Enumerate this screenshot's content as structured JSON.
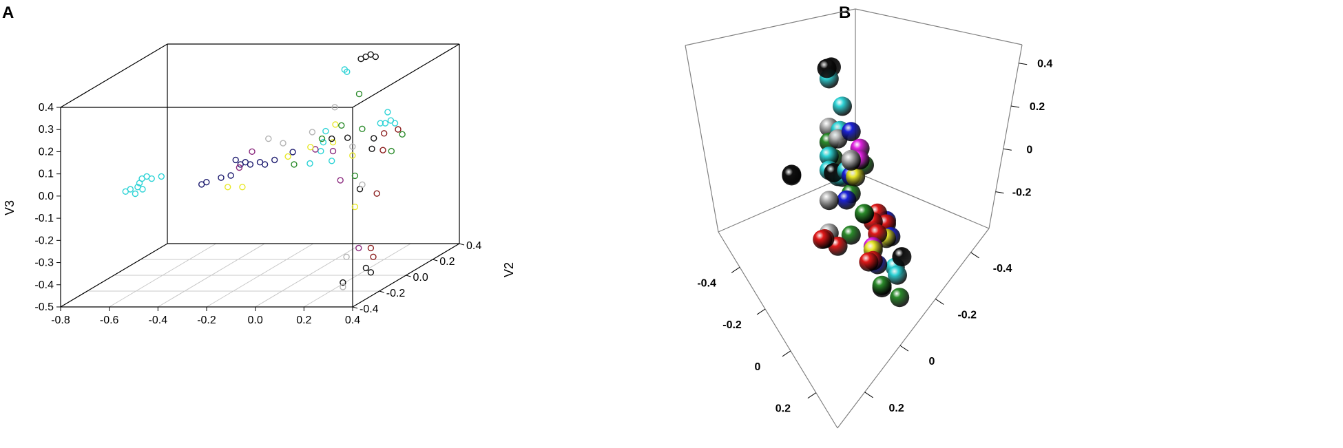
{
  "figure": {
    "panel_a_label": "A",
    "panel_b_label": "B"
  },
  "colors": {
    "cyan": "#2ed3d6",
    "navy": "#1c1a6e",
    "purple": "#8b2a7e",
    "yellow": "#e8e82a",
    "green": "#2a8a2a",
    "black": "#111111",
    "gray": "#b4b4b4",
    "darkred": "#8a1c1c",
    "red": "#e01818",
    "blue": "#1c22d8",
    "magenta": "#e020e0",
    "lime": "#20b820"
  },
  "chart_data": [
    {
      "type": "scatter",
      "subtype": "3d-scatter",
      "title": "",
      "xlabel": "",
      "ylabel": "V2",
      "zlabel": "V3",
      "x_ticks": [
        "-0.8",
        "-0.6",
        "-0.4",
        "-0.2",
        "0.0",
        "0.2",
        "0.4"
      ],
      "y_ticks": [
        "-0.4",
        "-0.2",
        "0.0",
        "0.2",
        "0.4"
      ],
      "z_ticks": [
        "-0.5",
        "-0.4",
        "-0.3",
        "-0.2",
        "-0.1",
        "0.0",
        "0.1",
        "0.2",
        "0.3",
        "0.4"
      ],
      "xlim": [
        -0.8,
        0.4
      ],
      "ylim": [
        -0.4,
        0.4
      ],
      "zlim": [
        -0.5,
        0.4
      ],
      "grid": "floor",
      "series": [
        {
          "color": "#2ed3d6",
          "points": [
            [
              -0.78,
              0.05,
              -0.14
            ],
            [
              -0.76,
              0.05,
              -0.13
            ],
            [
              -0.75,
              0.1,
              -0.12
            ],
            [
              -0.74,
              0.1,
              -0.1
            ],
            [
              -0.73,
              0.05,
              -0.12
            ],
            [
              -0.72,
              0.1,
              -0.09
            ],
            [
              -0.7,
              0.1,
              -0.1
            ],
            [
              -0.66,
              0.1,
              -0.09
            ],
            [
              -0.74,
              0.05,
              -0.15
            ],
            [
              -0.71,
              0.05,
              -0.13
            ],
            [
              0.12,
              0.05,
              0.41
            ],
            [
              0.13,
              0.05,
              0.4
            ],
            [
              0.07,
              0.0,
              0.15
            ],
            [
              0.06,
              0.0,
              0.1
            ],
            [
              0.06,
              -0.1,
              0.04
            ],
            [
              0.04,
              0.1,
              -0.02
            ],
            [
              0.05,
              0.0,
              0.06
            ],
            [
              0.24,
              0.1,
              0.15
            ],
            [
              0.26,
              0.1,
              0.15
            ],
            [
              0.3,
              0.1,
              0.15
            ],
            [
              0.31,
              0.05,
              0.18
            ],
            [
              0.27,
              0.1,
              0.2
            ]
          ]
        },
        {
          "color": "#1c1a6e",
          "points": [
            [
              -0.44,
              0.0,
              -0.09
            ],
            [
              -0.42,
              0.0,
              -0.08
            ],
            [
              -0.36,
              0.0,
              -0.06
            ],
            [
              -0.32,
              0.0,
              -0.05
            ],
            [
              -0.3,
              0.0,
              0.02
            ],
            [
              -0.28,
              0.0,
              0.0
            ],
            [
              -0.26,
              0.0,
              0.01
            ],
            [
              -0.24,
              0.0,
              0.0
            ],
            [
              -0.2,
              0.0,
              0.01
            ],
            [
              -0.18,
              0.0,
              0.0
            ],
            [
              -0.14,
              0.0,
              0.02
            ],
            [
              -0.12,
              0.1,
              0.02
            ]
          ]
        },
        {
          "color": "#8b2a7e",
          "points": [
            [
              -0.34,
              0.1,
              -0.05
            ],
            [
              -0.26,
              0.05,
              0.04
            ],
            [
              0.0,
              0.05,
              0.05
            ],
            [
              0.1,
              0.0,
              0.06
            ],
            [
              0.24,
              -0.2,
              0.0
            ],
            [
              0.37,
              -0.3,
              -0.27
            ]
          ]
        },
        {
          "color": "#e8e82a",
          "points": [
            [
              -0.36,
              0.05,
              -0.12
            ],
            [
              -0.3,
              0.05,
              -0.12
            ],
            [
              -0.14,
              0.1,
              0.0
            ],
            [
              -0.02,
              0.05,
              0.06
            ],
            [
              0.1,
              0.0,
              0.1
            ],
            [
              0.11,
              0.0,
              0.18
            ],
            [
              0.18,
              0.0,
              0.04
            ],
            [
              0.3,
              -0.2,
              -0.12
            ]
          ]
        },
        {
          "color": "#2a8a2a",
          "points": [
            [
              0.0,
              0.1,
              0.08
            ],
            [
              -0.06,
              0.0,
              0.0
            ],
            [
              0.08,
              0.1,
              0.14
            ],
            [
              0.18,
              0.05,
              0.3
            ],
            [
              0.22,
              0.0,
              0.16
            ],
            [
              0.3,
              -0.2,
              0.02
            ],
            [
              0.34,
              0.0,
              0.06
            ],
            [
              0.33,
              0.1,
              0.1
            ]
          ]
        },
        {
          "color": "#111111",
          "points": [
            [
              0.16,
              0.1,
              0.44
            ],
            [
              0.18,
              0.1,
              0.45
            ],
            [
              0.2,
              0.1,
              0.46
            ],
            [
              0.22,
              0.1,
              0.45
            ],
            [
              0.04,
              0.1,
              0.08
            ],
            [
              0.16,
              0.0,
              0.12
            ],
            [
              0.24,
              0.05,
              0.1
            ],
            [
              0.26,
              0.0,
              0.07
            ],
            [
              0.32,
              -0.2,
              -0.04
            ],
            [
              0.4,
              -0.3,
              -0.36
            ],
            [
              0.42,
              -0.3,
              -0.38
            ],
            [
              0.36,
              -0.4,
              -0.39
            ]
          ]
        },
        {
          "color": "#b4b4b4",
          "points": [
            [
              -0.22,
              0.1,
              0.08
            ],
            [
              -0.16,
              0.1,
              0.06
            ],
            [
              -0.04,
              0.1,
              0.11
            ],
            [
              0.08,
              0.05,
              0.24
            ],
            [
              0.18,
              0.0,
              0.08
            ],
            [
              0.33,
              -0.2,
              -0.02
            ],
            [
              0.32,
              -0.3,
              -0.31
            ],
            [
              0.36,
              -0.4,
              -0.41
            ]
          ]
        },
        {
          "color": "#8a1c1c",
          "points": [
            [
              0.31,
              0.0,
              0.14
            ],
            [
              0.34,
              0.05,
              0.14
            ],
            [
              0.36,
              -0.1,
              0.1
            ],
            [
              0.39,
              -0.2,
              -0.06
            ],
            [
              0.43,
              -0.3,
              -0.31
            ],
            [
              0.42,
              -0.3,
              -0.27
            ]
          ]
        }
      ]
    },
    {
      "type": "scatter",
      "subtype": "3d-scatter",
      "title": "",
      "axis1_ticks": [
        "-0.4",
        "-0.2",
        "0",
        "0.2"
      ],
      "axis2_ticks": [
        "-0.4",
        "-0.2",
        "0",
        "0.2"
      ],
      "axis3_ticks": [
        "-0.2",
        "0",
        "0.2",
        "0.4"
      ],
      "grid": "off",
      "series": [
        {
          "color": "#111111",
          "points": [
            [
              -0.3,
              -0.45,
              0.38
            ],
            [
              -0.27,
              -0.44,
              0.39
            ],
            [
              0.35,
              0.02,
              0.3
            ],
            [
              0.37,
              0.04,
              0.31
            ],
            [
              0.02,
              -0.12,
              0.1
            ],
            [
              -0.02,
              0.15,
              -0.25
            ],
            [
              0.1,
              0.18,
              -0.35
            ]
          ]
        },
        {
          "color": "#2ed3d6",
          "points": [
            [
              -0.28,
              -0.44,
              0.33
            ],
            [
              -0.2,
              -0.3,
              0.28
            ],
            [
              -0.16,
              -0.27,
              0.18
            ],
            [
              -0.16,
              -0.32,
              0.02
            ],
            [
              -0.12,
              -0.28,
              -0.02
            ],
            [
              -0.08,
              -0.2,
              0.0
            ],
            [
              -0.04,
              -0.14,
              0.04
            ],
            [
              0.0,
              -0.08,
              0.12
            ],
            [
              -0.02,
              0.12,
              -0.32
            ],
            [
              0.0,
              0.15,
              -0.34
            ]
          ]
        },
        {
          "color": "#b4b4b4",
          "points": [
            [
              -0.2,
              -0.36,
              0.14
            ],
            [
              -0.15,
              -0.27,
              0.14
            ],
            [
              0.26,
              0.2,
              0.42
            ],
            [
              0.28,
              0.22,
              0.43
            ],
            [
              0.22,
              0.06,
              0.12
            ],
            [
              0.26,
              0.1,
              -0.02
            ]
          ]
        },
        {
          "color": "#2a8a2a",
          "points": [
            [
              -0.2,
              -0.36,
              0.06
            ],
            [
              -0.18,
              -0.32,
              0.0
            ],
            [
              -0.04,
              -0.04,
              0.15
            ],
            [
              -0.04,
              -0.1,
              -0.03
            ],
            [
              0.02,
              0.02,
              -0.06
            ],
            [
              0.04,
              0.04,
              -0.04
            ],
            [
              0.2,
              0.14,
              -0.04
            ],
            [
              0.04,
              0.2,
              -0.42
            ],
            [
              0.12,
              0.2,
              -0.32
            ]
          ]
        },
        {
          "color": "#1c22d8",
          "points": [
            [
              -0.1,
              -0.16,
              0.25
            ],
            [
              0.0,
              -0.06,
              0.1
            ],
            [
              0.02,
              -0.06,
              -0.02
            ],
            [
              -0.08,
              0.02,
              -0.14
            ],
            [
              -0.06,
              0.06,
              -0.2
            ],
            [
              0.06,
              0.12,
              -0.27
            ]
          ]
        },
        {
          "color": "#e020e0",
          "points": [
            [
              -0.12,
              -0.14,
              0.16
            ],
            [
              0.22,
              0.2,
              0.4
            ],
            [
              0.04,
              0.08,
              -0.2
            ]
          ]
        },
        {
          "color": "#e8e82a",
          "points": [
            [
              0.22,
              0.18,
              0.3
            ],
            [
              -0.04,
              0.06,
              -0.2
            ],
            [
              0.06,
              0.1,
              -0.2
            ]
          ]
        },
        {
          "color": "#e01818",
          "points": [
            [
              -0.06,
              0.0,
              -0.1
            ],
            [
              -0.06,
              0.04,
              -0.14
            ],
            [
              -0.02,
              0.02,
              -0.12
            ],
            [
              0.02,
              0.08,
              -0.14
            ],
            [
              0.08,
              0.12,
              -0.24
            ],
            [
              0.12,
              0.14,
              -0.22
            ],
            [
              0.32,
              0.2,
              -0.02
            ],
            [
              0.44,
              0.26,
              0.1
            ],
            [
              0.46,
              0.27,
              0.11
            ]
          ]
        }
      ]
    }
  ]
}
